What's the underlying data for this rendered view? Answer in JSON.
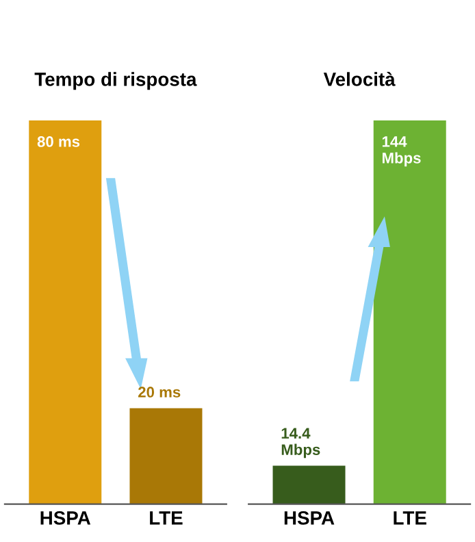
{
  "chart_data": [
    {
      "type": "bar",
      "title": "Tempo di risposta",
      "categories": [
        "HSPA",
        "LTE"
      ],
      "values": [
        80,
        20
      ],
      "colors": [
        "#df9f0f",
        "#a97806"
      ],
      "value_labels": [
        "80 ms",
        "20 ms"
      ]
    },
    {
      "type": "bar",
      "title": "Velocità",
      "categories": [
        "HSPA",
        "LTE"
      ],
      "values": [
        14.4,
        144
      ],
      "colors": [
        "#375c1c",
        "#6db233"
      ],
      "value_labels": [
        "14.4\nMbps",
        "144\nMbps"
      ]
    }
  ]
}
